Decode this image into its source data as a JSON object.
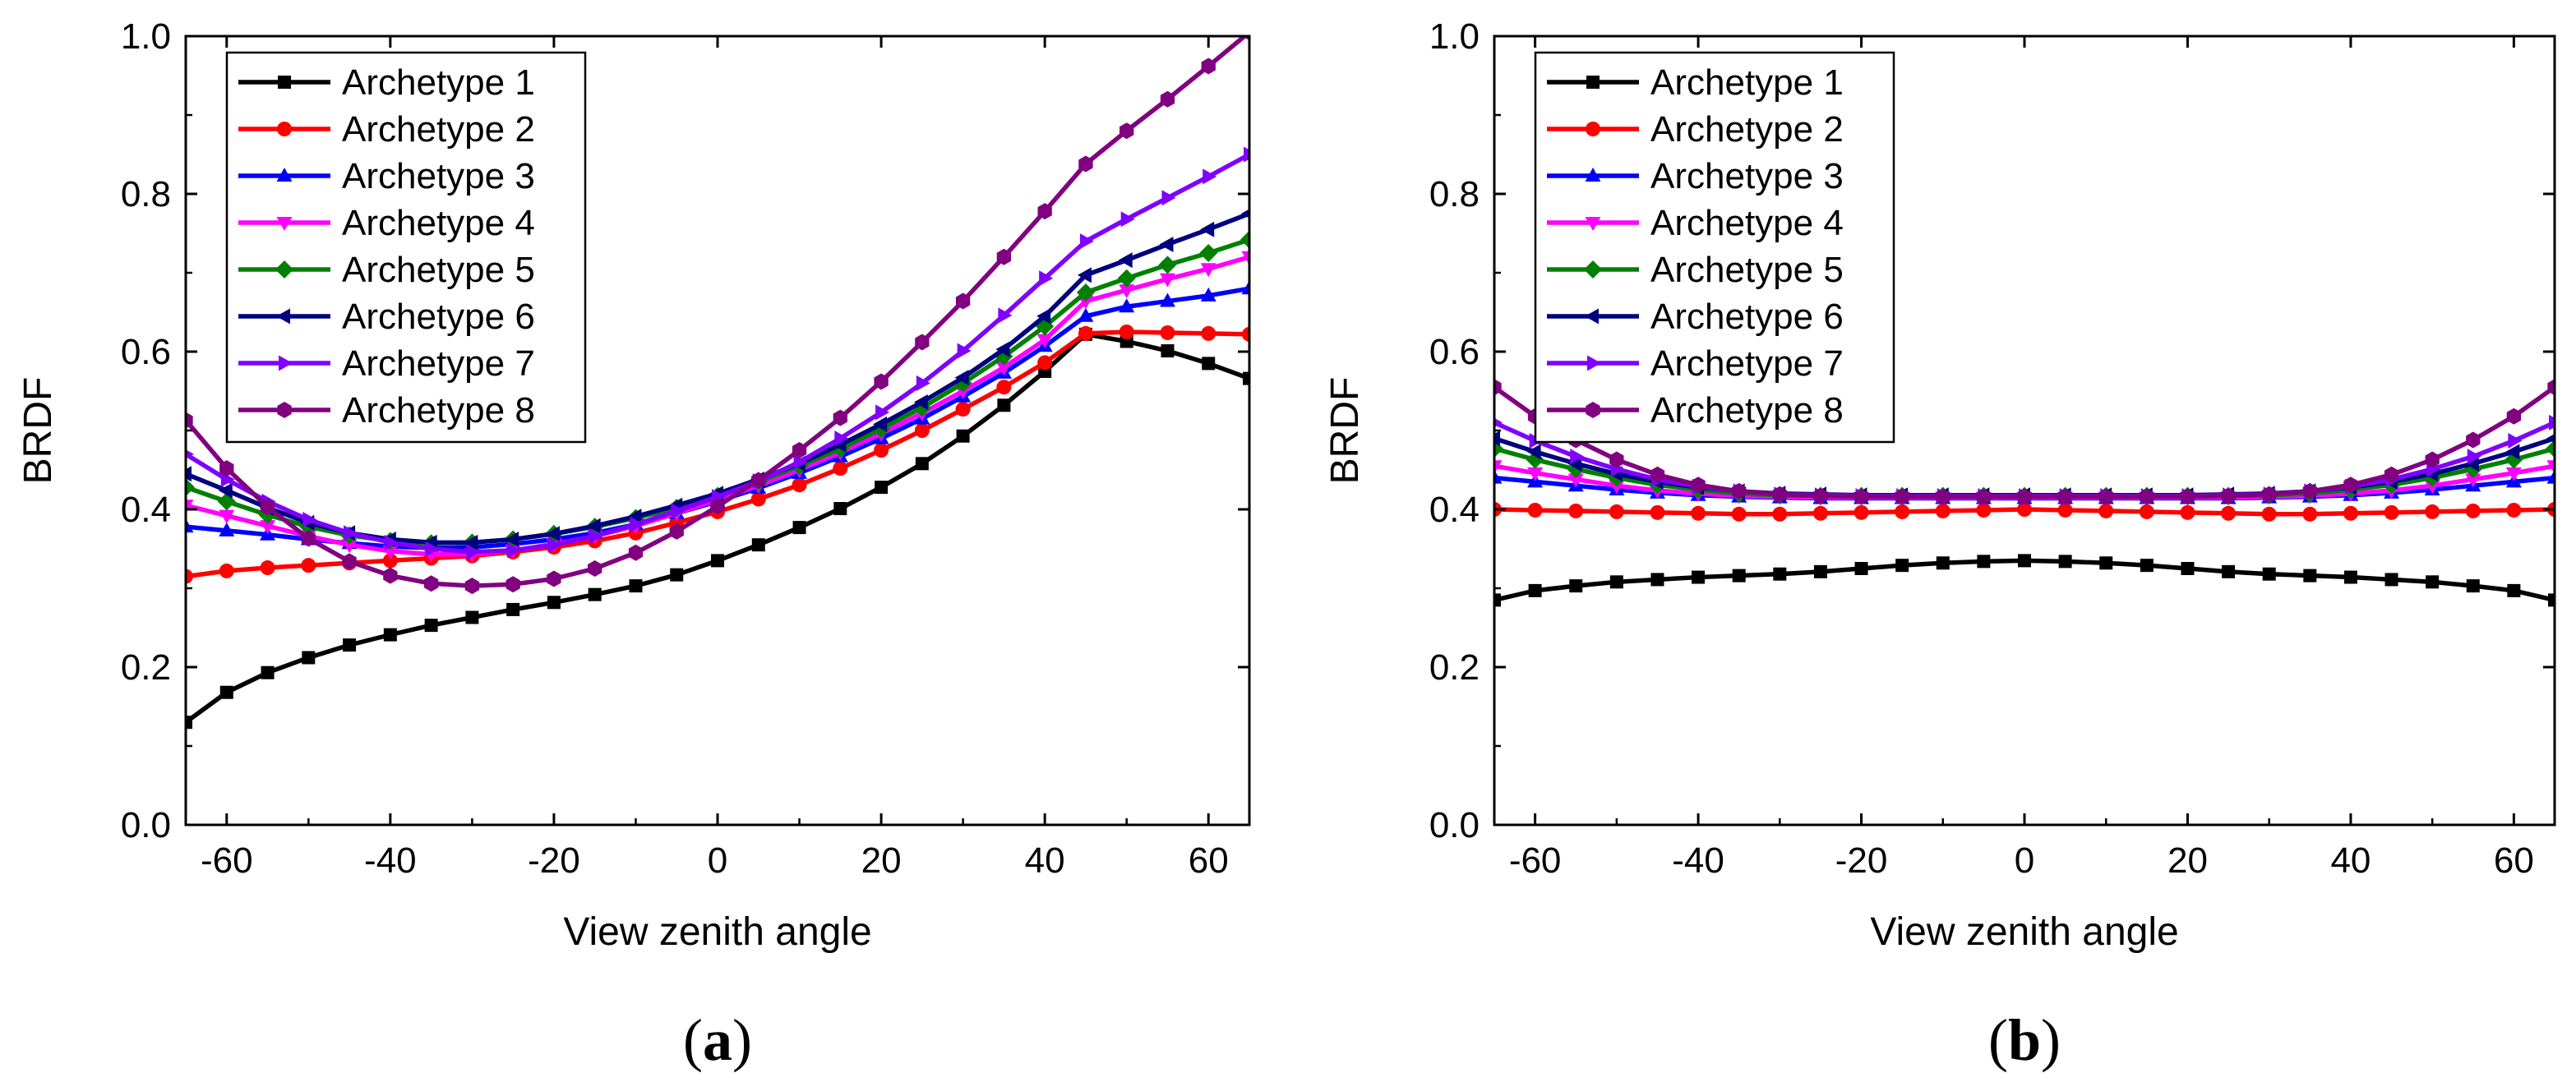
{
  "chart_data": [
    {
      "type": "line",
      "panel_label": "a",
      "xlabel": "View zenith angle",
      "ylabel": "BRDF",
      "xlim": [
        -65,
        65
      ],
      "ylim": [
        0,
        1.0
      ],
      "xticks": [
        -60,
        -40,
        -20,
        0,
        20,
        40,
        60
      ],
      "yticks": [
        0.0,
        0.2,
        0.4,
        0.6,
        0.8,
        1.0
      ],
      "xtick_labels": [
        "-60",
        "-40",
        "-20",
        "0",
        "20",
        "40",
        "60"
      ],
      "ytick_labels": [
        "0.0",
        "0.2",
        "0.4",
        "0.6",
        "0.8",
        "1.0"
      ],
      "legend": "top-left",
      "x": [
        -65,
        -60,
        -55,
        -50,
        -45,
        -40,
        -35,
        -30,
        -25,
        -20,
        -15,
        -10,
        -5,
        0,
        5,
        10,
        15,
        20,
        25,
        30,
        35,
        40,
        45,
        50,
        55,
        60,
        65
      ],
      "series": [
        {
          "name": "Archetype 1",
          "color": "#000000",
          "marker": "square",
          "values": [
            0.13,
            0.168,
            0.193,
            0.212,
            0.228,
            0.241,
            0.253,
            0.263,
            0.273,
            0.282,
            0.292,
            0.303,
            0.317,
            0.335,
            0.355,
            0.377,
            0.401,
            0.428,
            0.458,
            0.493,
            0.532,
            0.575,
            0.622,
            0.613,
            0.601,
            0.585,
            0.566
          ]
        },
        {
          "name": "Archetype 2",
          "color": "#ff0000",
          "marker": "circle",
          "values": [
            0.315,
            0.322,
            0.326,
            0.329,
            0.332,
            0.335,
            0.338,
            0.341,
            0.346,
            0.352,
            0.36,
            0.37,
            0.383,
            0.397,
            0.413,
            0.431,
            0.452,
            0.475,
            0.5,
            0.527,
            0.555,
            0.586,
            0.623,
            0.625,
            0.624,
            0.623,
            0.622
          ]
        },
        {
          "name": "Archetype 3",
          "color": "#0000ff",
          "marker": "triangle-up",
          "values": [
            0.378,
            0.373,
            0.368,
            0.362,
            0.357,
            0.353,
            0.351,
            0.352,
            0.356,
            0.362,
            0.37,
            0.381,
            0.395,
            0.41,
            0.427,
            0.446,
            0.467,
            0.49,
            0.515,
            0.543,
            0.573,
            0.607,
            0.645,
            0.657,
            0.664,
            0.671,
            0.68
          ]
        },
        {
          "name": "Archetype 4",
          "color": "#ff00ff",
          "marker": "triangle-down",
          "values": [
            0.405,
            0.392,
            0.379,
            0.366,
            0.355,
            0.347,
            0.343,
            0.343,
            0.348,
            0.356,
            0.366,
            0.379,
            0.395,
            0.412,
            0.43,
            0.45,
            0.472,
            0.496,
            0.522,
            0.55,
            0.58,
            0.615,
            0.664,
            0.678,
            0.692,
            0.705,
            0.72
          ]
        },
        {
          "name": "Archetype 5",
          "color": "#008000",
          "marker": "diamond",
          "values": [
            0.428,
            0.41,
            0.393,
            0.378,
            0.367,
            0.36,
            0.357,
            0.358,
            0.362,
            0.369,
            0.378,
            0.389,
            0.402,
            0.417,
            0.435,
            0.455,
            0.477,
            0.502,
            0.529,
            0.56,
            0.594,
            0.632,
            0.675,
            0.693,
            0.71,
            0.725,
            0.742
          ]
        },
        {
          "name": "Archetype 6",
          "color": "#000080",
          "marker": "triangle-left",
          "values": [
            0.445,
            0.424,
            0.402,
            0.383,
            0.37,
            0.362,
            0.358,
            0.358,
            0.362,
            0.369,
            0.379,
            0.391,
            0.405,
            0.42,
            0.438,
            0.458,
            0.482,
            0.508,
            0.536,
            0.567,
            0.603,
            0.645,
            0.697,
            0.716,
            0.736,
            0.755,
            0.775
          ]
        },
        {
          "name": "Archetype 7",
          "color": "#8000ff",
          "marker": "triangle-right",
          "values": [
            0.47,
            0.438,
            0.41,
            0.387,
            0.37,
            0.358,
            0.35,
            0.346,
            0.348,
            0.355,
            0.366,
            0.381,
            0.398,
            0.416,
            0.436,
            0.46,
            0.49,
            0.523,
            0.56,
            0.601,
            0.646,
            0.693,
            0.74,
            0.768,
            0.795,
            0.822,
            0.85
          ]
        },
        {
          "name": "Archetype 8",
          "color": "#800080",
          "marker": "hexagon",
          "values": [
            0.513,
            0.452,
            0.403,
            0.363,
            0.334,
            0.316,
            0.306,
            0.303,
            0.305,
            0.312,
            0.325,
            0.345,
            0.372,
            0.404,
            0.437,
            0.475,
            0.516,
            0.562,
            0.612,
            0.664,
            0.72,
            0.778,
            0.838,
            0.88,
            0.92,
            0.962,
            1.005
          ]
        }
      ]
    },
    {
      "type": "line",
      "panel_label": "b",
      "xlabel": "View zenith angle",
      "ylabel": "BRDF",
      "xlim": [
        -65,
        65
      ],
      "ylim": [
        0,
        1.0
      ],
      "xticks": [
        -60,
        -40,
        -20,
        0,
        20,
        40,
        60
      ],
      "yticks": [
        0.0,
        0.2,
        0.4,
        0.6,
        0.8,
        1.0
      ],
      "xtick_labels": [
        "-60",
        "-40",
        "-20",
        "0",
        "20",
        "40",
        "60"
      ],
      "ytick_labels": [
        "0.0",
        "0.2",
        "0.4",
        "0.6",
        "0.8",
        "1.0"
      ],
      "legend": "top-left",
      "x": [
        -65,
        -60,
        -55,
        -50,
        -45,
        -40,
        -35,
        -30,
        -25,
        -20,
        -15,
        -10,
        -5,
        0,
        5,
        10,
        15,
        20,
        25,
        30,
        35,
        40,
        45,
        50,
        55,
        60,
        65
      ],
      "series": [
        {
          "name": "Archetype 1",
          "color": "#000000",
          "marker": "square",
          "values": [
            0.285,
            0.297,
            0.303,
            0.308,
            0.311,
            0.314,
            0.316,
            0.318,
            0.321,
            0.325,
            0.329,
            0.332,
            0.334,
            0.335,
            0.334,
            0.332,
            0.329,
            0.325,
            0.321,
            0.318,
            0.316,
            0.314,
            0.311,
            0.308,
            0.303,
            0.297,
            0.285
          ]
        },
        {
          "name": "Archetype 2",
          "color": "#ff0000",
          "marker": "circle",
          "values": [
            0.4,
            0.399,
            0.398,
            0.397,
            0.396,
            0.395,
            0.394,
            0.394,
            0.395,
            0.396,
            0.397,
            0.398,
            0.399,
            0.4,
            0.399,
            0.398,
            0.397,
            0.396,
            0.395,
            0.394,
            0.394,
            0.395,
            0.396,
            0.397,
            0.398,
            0.399,
            0.4
          ]
        },
        {
          "name": "Archetype 3",
          "color": "#0000ff",
          "marker": "triangle-up",
          "values": [
            0.44,
            0.435,
            0.43,
            0.425,
            0.421,
            0.418,
            0.416,
            0.415,
            0.414,
            0.414,
            0.414,
            0.414,
            0.414,
            0.414,
            0.414,
            0.414,
            0.414,
            0.414,
            0.414,
            0.415,
            0.416,
            0.418,
            0.421,
            0.425,
            0.43,
            0.435,
            0.44
          ]
        },
        {
          "name": "Archetype 4",
          "color": "#ff00ff",
          "marker": "triangle-down",
          "values": [
            0.455,
            0.446,
            0.438,
            0.43,
            0.424,
            0.42,
            0.417,
            0.416,
            0.415,
            0.415,
            0.415,
            0.415,
            0.415,
            0.415,
            0.415,
            0.415,
            0.415,
            0.415,
            0.415,
            0.416,
            0.417,
            0.42,
            0.424,
            0.43,
            0.438,
            0.446,
            0.455
          ]
        },
        {
          "name": "Archetype 5",
          "color": "#008000",
          "marker": "diamond",
          "values": [
            0.477,
            0.463,
            0.451,
            0.44,
            0.431,
            0.425,
            0.42,
            0.418,
            0.417,
            0.417,
            0.417,
            0.417,
            0.417,
            0.417,
            0.417,
            0.417,
            0.417,
            0.417,
            0.417,
            0.418,
            0.42,
            0.425,
            0.431,
            0.44,
            0.451,
            0.463,
            0.477
          ]
        },
        {
          "name": "Archetype 6",
          "color": "#000080",
          "marker": "triangle-left",
          "values": [
            0.49,
            0.473,
            0.458,
            0.445,
            0.435,
            0.428,
            0.423,
            0.42,
            0.419,
            0.418,
            0.418,
            0.418,
            0.418,
            0.418,
            0.418,
            0.418,
            0.418,
            0.418,
            0.419,
            0.42,
            0.423,
            0.428,
            0.435,
            0.445,
            0.458,
            0.473,
            0.49
          ]
        },
        {
          "name": "Archetype 7",
          "color": "#8000ff",
          "marker": "triangle-right",
          "values": [
            0.51,
            0.487,
            0.467,
            0.451,
            0.438,
            0.429,
            0.423,
            0.419,
            0.418,
            0.417,
            0.417,
            0.417,
            0.417,
            0.417,
            0.417,
            0.417,
            0.417,
            0.417,
            0.418,
            0.419,
            0.423,
            0.429,
            0.438,
            0.451,
            0.467,
            0.487,
            0.51
          ]
        },
        {
          "name": "Archetype 8",
          "color": "#800080",
          "marker": "hexagon",
          "values": [
            0.555,
            0.518,
            0.488,
            0.463,
            0.444,
            0.431,
            0.423,
            0.419,
            0.417,
            0.416,
            0.416,
            0.416,
            0.416,
            0.416,
            0.416,
            0.416,
            0.416,
            0.416,
            0.417,
            0.419,
            0.423,
            0.431,
            0.444,
            0.463,
            0.488,
            0.518,
            0.555
          ]
        }
      ]
    }
  ]
}
